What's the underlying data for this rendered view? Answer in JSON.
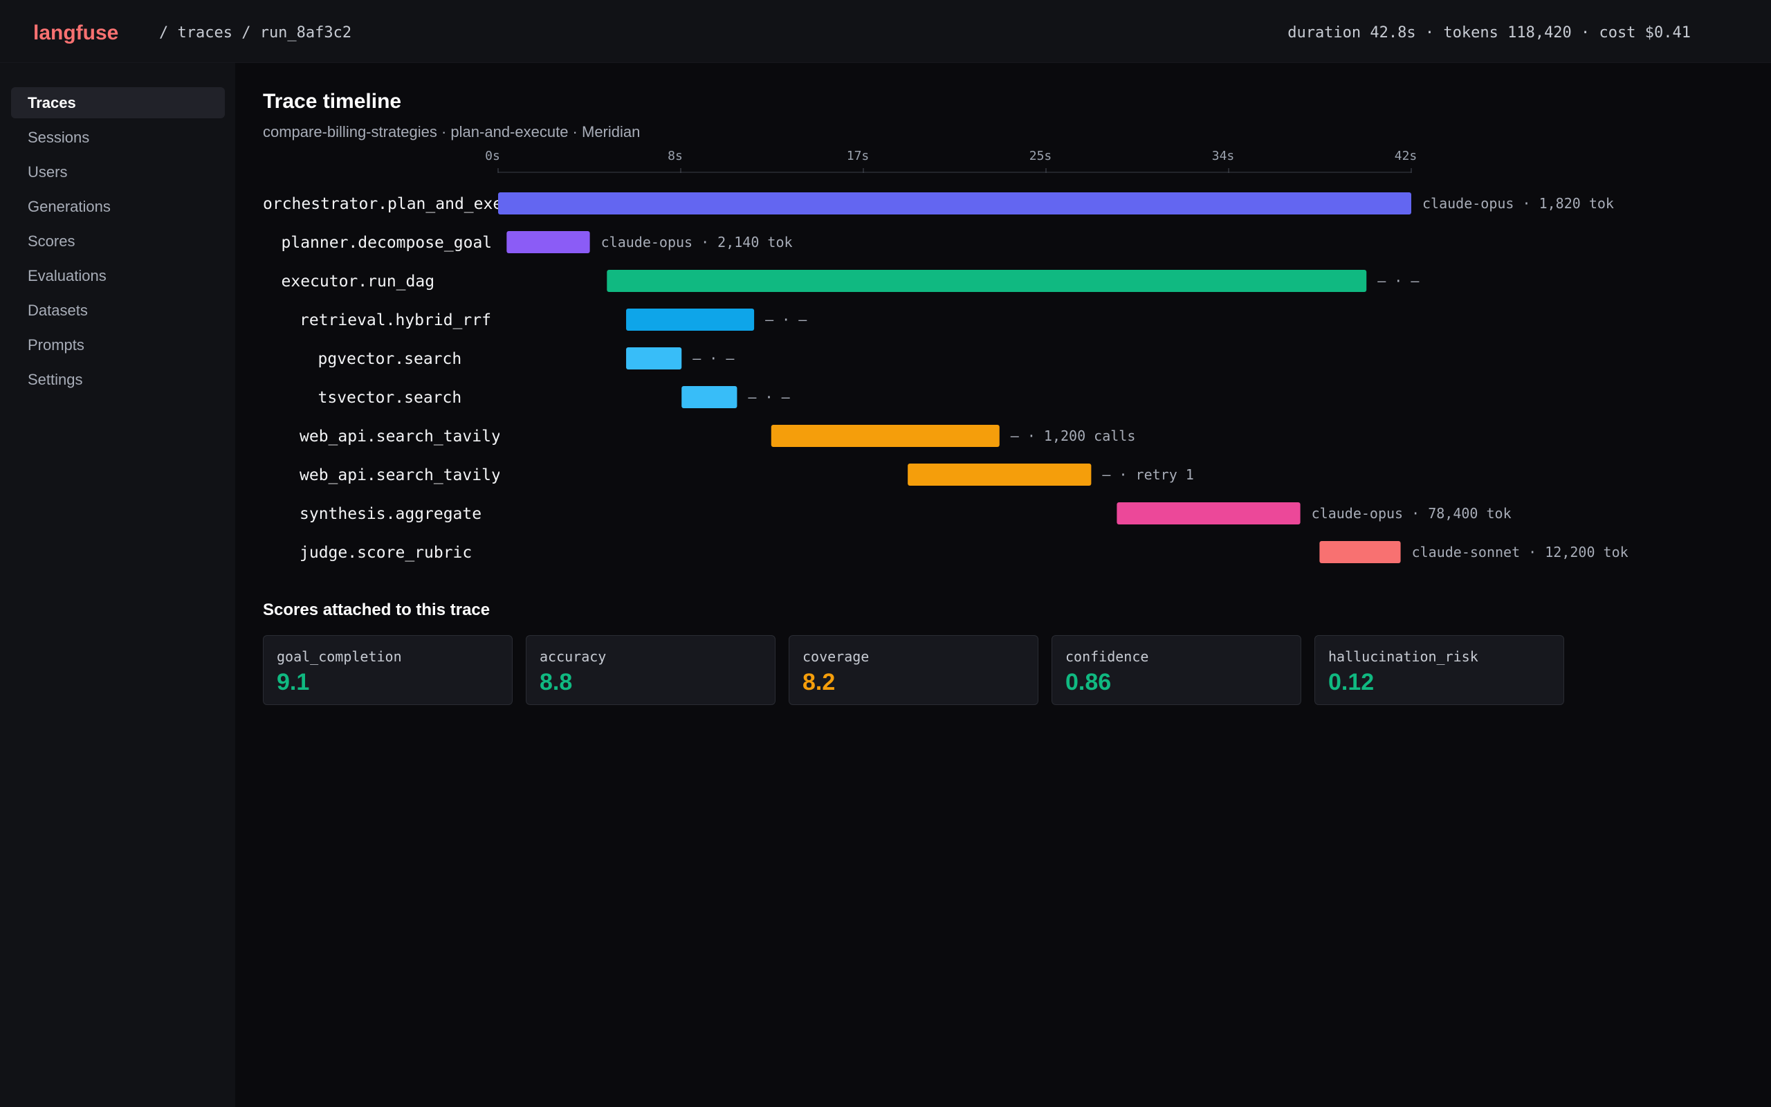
{
  "app": {
    "logo": "langfuse",
    "breadcrumb": "/ traces / run_8af3c2"
  },
  "header": {
    "stats": "duration 42.8s · tokens 118,420 · cost $0.41"
  },
  "sidebar": {
    "items": [
      {
        "label": "Traces",
        "active": true
      },
      {
        "label": "Sessions"
      },
      {
        "label": "Users"
      },
      {
        "label": "Generations"
      },
      {
        "label": "Scores"
      },
      {
        "label": "Evaluations"
      },
      {
        "label": "Datasets"
      },
      {
        "label": "Prompts"
      },
      {
        "label": "Settings"
      }
    ]
  },
  "page": {
    "title": "Trace timeline",
    "subtitle": "compare-billing-strategies · plan-and-execute · Meridian"
  },
  "timeline": {
    "axis_ticks": [
      "0s",
      "8s",
      "17s",
      "25s",
      "34s",
      "42s"
    ],
    "axis_max_s": 42.8,
    "spans": [
      {
        "name": "orchestrator.plan_and_execute",
        "depth": 0,
        "start_s": 0.0,
        "end_s": 42.8,
        "color": "#6366f1",
        "meta": "claude-opus  ·  1,820 tok"
      },
      {
        "name": "planner.decompose_goal",
        "depth": 1,
        "start_s": 0.4,
        "end_s": 4.3,
        "color": "#8b5cf6",
        "meta": "claude-opus  ·  2,140 tok"
      },
      {
        "name": "executor.run_dag",
        "depth": 1,
        "start_s": 5.1,
        "end_s": 40.7,
        "color": "#10b981",
        "meta": "—  ·  —"
      },
      {
        "name": "retrieval.hybrid_rrf",
        "depth": 2,
        "start_s": 6.0,
        "end_s": 12.0,
        "color": "#0ea5e9",
        "meta": "—  ·  —"
      },
      {
        "name": "pgvector.search",
        "depth": 3,
        "start_s": 6.0,
        "end_s": 8.6,
        "color": "#38bdf8",
        "meta": "—  ·  —"
      },
      {
        "name": "tsvector.search",
        "depth": 3,
        "start_s": 8.6,
        "end_s": 11.2,
        "color": "#38bdf8",
        "meta": "—  ·  —"
      },
      {
        "name": "web_api.search_tavily",
        "depth": 2,
        "start_s": 12.8,
        "end_s": 23.5,
        "color": "#f59e0b",
        "meta": "—  ·  1,200 calls"
      },
      {
        "name": "web_api.search_tavily",
        "depth": 2,
        "start_s": 19.2,
        "end_s": 27.8,
        "color": "#f59e0b",
        "meta": "—  ·  retry 1"
      },
      {
        "name": "synthesis.aggregate",
        "depth": 2,
        "start_s": 29.0,
        "end_s": 37.6,
        "color": "#ec4899",
        "meta": "claude-opus  ·  78,400 tok"
      },
      {
        "name": "judge.score_rubric",
        "depth": 2,
        "start_s": 38.5,
        "end_s": 42.3,
        "color": "#f87171",
        "meta": "claude-sonnet  ·  12,200 tok"
      }
    ]
  },
  "scores": {
    "title": "Scores attached to this trace",
    "items": [
      {
        "name": "goal_completion",
        "value": "9.1",
        "color": "#10b981"
      },
      {
        "name": "accuracy",
        "value": "8.8",
        "color": "#10b981"
      },
      {
        "name": "coverage",
        "value": "8.2",
        "color": "#f59e0b"
      },
      {
        "name": "confidence",
        "value": "0.86",
        "color": "#10b981"
      },
      {
        "name": "hallucination_risk",
        "value": "0.12",
        "color": "#10b981"
      }
    ]
  }
}
